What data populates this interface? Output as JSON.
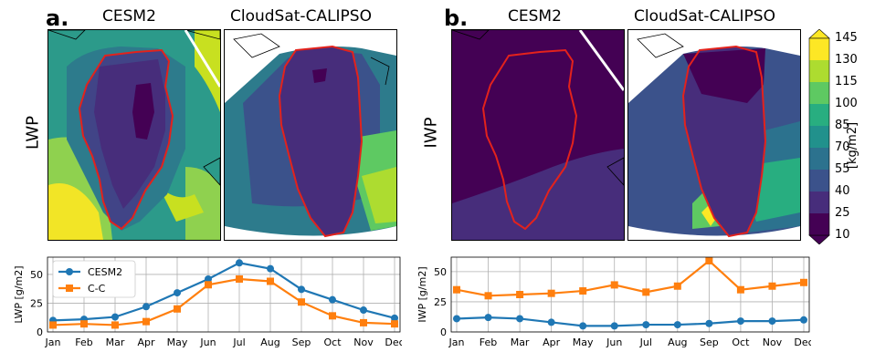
{
  "panel_a": {
    "letter": "a.",
    "row_label": "LWP",
    "left_title": "CESM2",
    "right_title": "CloudSat-CALIPSO"
  },
  "panel_b": {
    "letter": "b.",
    "row_label": "IWP",
    "left_title": "CESM2",
    "right_title": "CloudSat-CALIPSO"
  },
  "colorbar": {
    "label": "[kg/m2]",
    "ticks": [
      "10",
      "25",
      "40",
      "55",
      "70",
      "85",
      "100",
      "115",
      "130",
      "145"
    ],
    "colors": [
      "#440154",
      "#472d7b",
      "#3b528b",
      "#2c728e",
      "#21918c",
      "#28ae80",
      "#5ec962",
      "#addc30",
      "#fde725"
    ],
    "extend": "both"
  },
  "chart_data": [
    {
      "type": "line",
      "ylabel": "LWP [g/m2]",
      "ylim": [
        0,
        65
      ],
      "yticks": [
        "0",
        "25",
        "50"
      ],
      "grid": true,
      "legend": "top-left",
      "categories": [
        "Jan",
        "Feb",
        "Mar",
        "Apr",
        "May",
        "Jun",
        "Jul",
        "Aug",
        "Sep",
        "Oct",
        "Nov",
        "Dec"
      ],
      "series": [
        {
          "name": "CESM2",
          "color": "#1f77b4",
          "marker": "circle",
          "values": [
            10,
            11,
            13,
            22,
            34,
            46,
            60,
            55,
            37,
            28,
            19,
            12
          ]
        },
        {
          "name": "C-C",
          "color": "#ff7f0e",
          "marker": "square",
          "values": [
            6,
            7,
            6,
            9,
            20,
            41,
            46,
            44,
            26,
            14,
            8,
            7
          ]
        }
      ]
    },
    {
      "type": "line",
      "ylabel": "IWP [g/m2]",
      "ylim": [
        0,
        62
      ],
      "yticks": [
        "0",
        "25",
        "50"
      ],
      "grid": true,
      "categories": [
        "Jan",
        "Feb",
        "Mar",
        "Apr",
        "May",
        "Jun",
        "Jul",
        "Aug",
        "Sep",
        "Oct",
        "Nov",
        "Dec"
      ],
      "series": [
        {
          "name": "CESM2",
          "color": "#1f77b4",
          "marker": "circle",
          "values": [
            11,
            12,
            11,
            8,
            5,
            5,
            6,
            6,
            7,
            9,
            9,
            10
          ]
        },
        {
          "name": "C-C",
          "color": "#ff7f0e",
          "marker": "square",
          "values": [
            35,
            30,
            31,
            32,
            34,
            39,
            33,
            38,
            59,
            35,
            38,
            41
          ]
        }
      ]
    }
  ]
}
